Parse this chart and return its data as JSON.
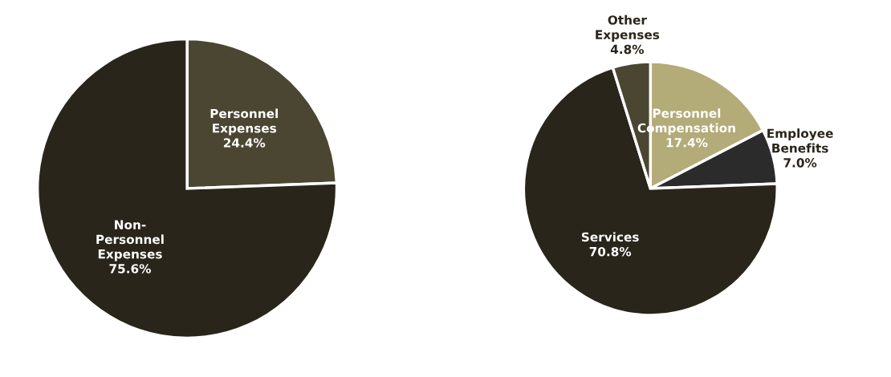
{
  "chart_data": [
    {
      "type": "pie",
      "categories": [
        "Personnel\nExpenses",
        "Non-\nPersonnel\nExpenses"
      ],
      "values": [
        24.4,
        75.6
      ],
      "colors": [
        "#4b4632",
        "#29251a"
      ],
      "value_labels": [
        "24.4%",
        "75.6%"
      ]
    },
    {
      "type": "pie",
      "categories": [
        "Personnel\nCompensation",
        "Employee\nBenefits",
        "Services",
        "Other\nExpenses"
      ],
      "values": [
        17.4,
        7.0,
        70.8,
        4.8
      ],
      "colors": [
        "#b3ab78",
        "#2b2b2b",
        "#29251a",
        "#4b4632"
      ],
      "value_labels": [
        "17.4%",
        "7.0%",
        "70.8%",
        "4.8%"
      ]
    }
  ]
}
